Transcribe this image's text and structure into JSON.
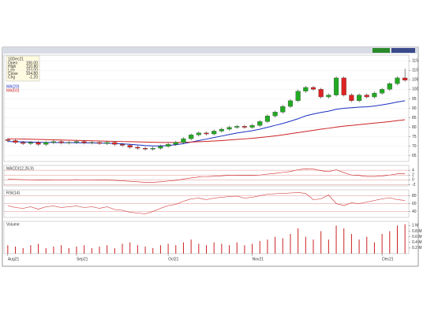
{
  "chart_data": [
    {
      "type": "candlestick",
      "title": "10Dec21",
      "info": [
        {
          "label": "Open",
          "value": "106.00"
        },
        {
          "label": "High",
          "value": "110.80"
        },
        {
          "label": "Low",
          "value": "104.00"
        },
        {
          "label": "Close",
          "value": "104.80"
        },
        {
          "label": "Chg",
          "value": "-1.20"
        }
      ],
      "categories": [
        "Aug21",
        null,
        null,
        null,
        null,
        null,
        null,
        null,
        null,
        "Sep21",
        null,
        null,
        null,
        null,
        null,
        null,
        null,
        null,
        null,
        null,
        null,
        "Oct21",
        null,
        null,
        null,
        null,
        null,
        null,
        null,
        null,
        null,
        null,
        "Nov21",
        null,
        null,
        null,
        null,
        null,
        null,
        null,
        null,
        null,
        null,
        null,
        null,
        null,
        null,
        null,
        null,
        "Dec21",
        null,
        null,
        null
      ],
      "open": [
        73.5,
        73,
        72,
        71.5,
        72,
        71,
        72,
        72.5,
        71.8,
        72,
        72.5,
        71.8,
        72,
        71.5,
        72,
        71,
        70.5,
        69.5,
        69,
        68.5,
        69,
        70,
        71,
        72,
        74,
        76,
        77,
        76.5,
        78,
        79,
        80,
        80.5,
        80,
        81,
        83,
        86,
        88,
        91,
        94,
        99,
        101,
        100,
        96,
        97,
        106,
        97,
        94,
        97,
        96,
        98,
        100,
        103,
        106
      ],
      "high": [
        74.3,
        73.8,
        72.8,
        72.8,
        72.8,
        72.8,
        73.3,
        73.3,
        72.8,
        73.3,
        73.3,
        72.8,
        72.8,
        72.8,
        72.8,
        71.8,
        71.3,
        70.3,
        69.8,
        69.8,
        70.8,
        71.8,
        72.8,
        74.8,
        76.8,
        77.8,
        77.8,
        78.8,
        79.8,
        80.8,
        81.3,
        81.3,
        81.8,
        83.8,
        86.8,
        88.8,
        91.8,
        94.8,
        99.8,
        101.8,
        101.8,
        100.8,
        97.8,
        106.8,
        106.8,
        97.8,
        97.8,
        97.8,
        98.8,
        100.8,
        103.8,
        106.8,
        110.8
      ],
      "low": [
        72.2,
        71.2,
        70.7,
        70.7,
        70.2,
        70.2,
        71.2,
        71,
        71,
        71.2,
        71,
        71,
        70.7,
        70.7,
        70.2,
        69.7,
        68.7,
        68.2,
        67.7,
        67.7,
        68.2,
        69.2,
        70.2,
        71.2,
        73.2,
        75.2,
        75.7,
        75.7,
        77.2,
        78.2,
        79.2,
        79.2,
        79.2,
        80.2,
        82.2,
        85.2,
        87.2,
        90.2,
        93.2,
        98.2,
        99.2,
        95.2,
        95.2,
        96.2,
        96.2,
        93.2,
        93.2,
        95.2,
        95.2,
        97.2,
        99.2,
        102.2,
        104
      ],
      "close": [
        73,
        72,
        71.5,
        72,
        71,
        72,
        72.5,
        71.8,
        72,
        72.5,
        71.8,
        72,
        71.5,
        72,
        71,
        70.5,
        69.5,
        69,
        68.5,
        69,
        70,
        71,
        72,
        74,
        76,
        77,
        76.5,
        78,
        79,
        80,
        80.5,
        80,
        81,
        83,
        86,
        88,
        91,
        94,
        99,
        101,
        100,
        96,
        97,
        106,
        97,
        94,
        97,
        96,
        98,
        100,
        103,
        106,
        104.8
      ],
      "up_color": "#22aa22",
      "down_color": "#dd2222",
      "series": [
        {
          "name": "MA(20)",
          "color": "#1a2fbf",
          "values": [
            72.5,
            72.4,
            72.3,
            72.2,
            72.1,
            72,
            72,
            71.9,
            71.9,
            71.9,
            71.8,
            71.8,
            71.7,
            71.6,
            71.5,
            71.3,
            71,
            70.7,
            70.4,
            70.2,
            70.2,
            70.4,
            70.8,
            71.4,
            72.2,
            73,
            73.8,
            74.6,
            75.4,
            76.2,
            77,
            77.6,
            78.2,
            79,
            80,
            81,
            82,
            83.2,
            84.5,
            86,
            87,
            87.8,
            88.5,
            89.5,
            90,
            90.3,
            90.6,
            90.8,
            91.2,
            91.8,
            92.5,
            93.3,
            94
          ]
        },
        {
          "name": "MA(50)",
          "color": "#cc2222",
          "values": [
            74,
            73.9,
            73.8,
            73.7,
            73.6,
            73.5,
            73.4,
            73.3,
            73.2,
            73.1,
            73,
            72.9,
            72.8,
            72.7,
            72.6,
            72.5,
            72.4,
            72.3,
            72.2,
            72.1,
            72,
            72,
            72,
            72.1,
            72.2,
            72.4,
            72.6,
            72.8,
            73,
            73.3,
            73.6,
            73.9,
            74.2,
            74.6,
            75,
            75.5,
            76,
            76.6,
            77.2,
            77.8,
            78.4,
            79,
            79.5,
            80.1,
            80.6,
            81,
            81.4,
            81.8,
            82.2,
            82.6,
            83,
            83.5,
            84
          ]
        }
      ],
      "ylim": [
        62,
        118
      ],
      "yticks": [
        65,
        70,
        75,
        80,
        85,
        90,
        95,
        100,
        105,
        110,
        115
      ],
      "grid": true
    },
    {
      "type": "line",
      "title": "MACD(12,26,9)",
      "series": [
        {
          "name": "MACD",
          "color": "#cc2222",
          "values": [
            0.3,
            0.2,
            0.1,
            0,
            -0.1,
            -0.1,
            0,
            0,
            0,
            0.1,
            0,
            0,
            -0.1,
            -0.1,
            -0.2,
            -0.4,
            -0.6,
            -0.8,
            -1,
            -1,
            -0.8,
            -0.5,
            -0.2,
            0.3,
            0.8,
            1.2,
            1.3,
            1.5,
            1.7,
            1.9,
            1.9,
            1.8,
            1.8,
            2,
            2.4,
            2.7,
            3.1,
            3.5,
            4.2,
            4.6,
            4.5,
            3.8,
            3.4,
            4.2,
            3,
            2,
            1.8,
            1.4,
            1.4,
            1.6,
            2,
            2.5,
            2.6
          ]
        }
      ],
      "ylim": [
        -2.5,
        6
      ],
      "yticks": [
        -2,
        0,
        2,
        4
      ],
      "grid": true
    },
    {
      "type": "line",
      "title": "RSI(14)",
      "series": [
        {
          "name": "RSI",
          "color": "#cc2222",
          "values": [
            55,
            50,
            48,
            52,
            46,
            52,
            54,
            50,
            52,
            54,
            50,
            52,
            48,
            52,
            45,
            43,
            38,
            36,
            34,
            40,
            48,
            55,
            58,
            66,
            72,
            74,
            70,
            74,
            76,
            78,
            79,
            74,
            76,
            80,
            84,
            85,
            86,
            87,
            88,
            86,
            70,
            72,
            82,
            60,
            55,
            62,
            60,
            64,
            68,
            72,
            75,
            70,
            68
          ]
        }
      ],
      "ylim": [
        25,
        95
      ],
      "yticks": [
        40,
        60,
        80
      ],
      "grid": true
    },
    {
      "type": "bar",
      "title": "Volume",
      "color": "#cc2222",
      "values": [
        0.3,
        0.25,
        0.2,
        0.3,
        0.35,
        0.2,
        0.25,
        0.3,
        0.2,
        0.25,
        0.3,
        0.2,
        0.25,
        0.3,
        0.2,
        0.35,
        0.4,
        0.3,
        0.25,
        0.2,
        0.3,
        0.35,
        0.3,
        0.4,
        0.5,
        0.35,
        0.3,
        0.4,
        0.35,
        0.3,
        0.4,
        0.3,
        0.35,
        0.45,
        0.5,
        0.6,
        0.55,
        0.7,
        0.9,
        0.6,
        0.5,
        0.8,
        0.5,
        1.0,
        0.9,
        0.7,
        0.5,
        0.6,
        0.4,
        0.7,
        0.8,
        1.0,
        1.05
      ],
      "ylim": [
        0,
        1.15
      ],
      "yticks": [
        {
          "value": 0.2,
          "label": "0.2 M"
        },
        {
          "value": 0.4,
          "label": "0.4 M"
        },
        {
          "value": 0.6,
          "label": "0.6 M"
        },
        {
          "value": 0.8,
          "label": "0.8 M"
        },
        {
          "value": 1.0,
          "label": "1 M"
        }
      ],
      "grid": false
    }
  ]
}
